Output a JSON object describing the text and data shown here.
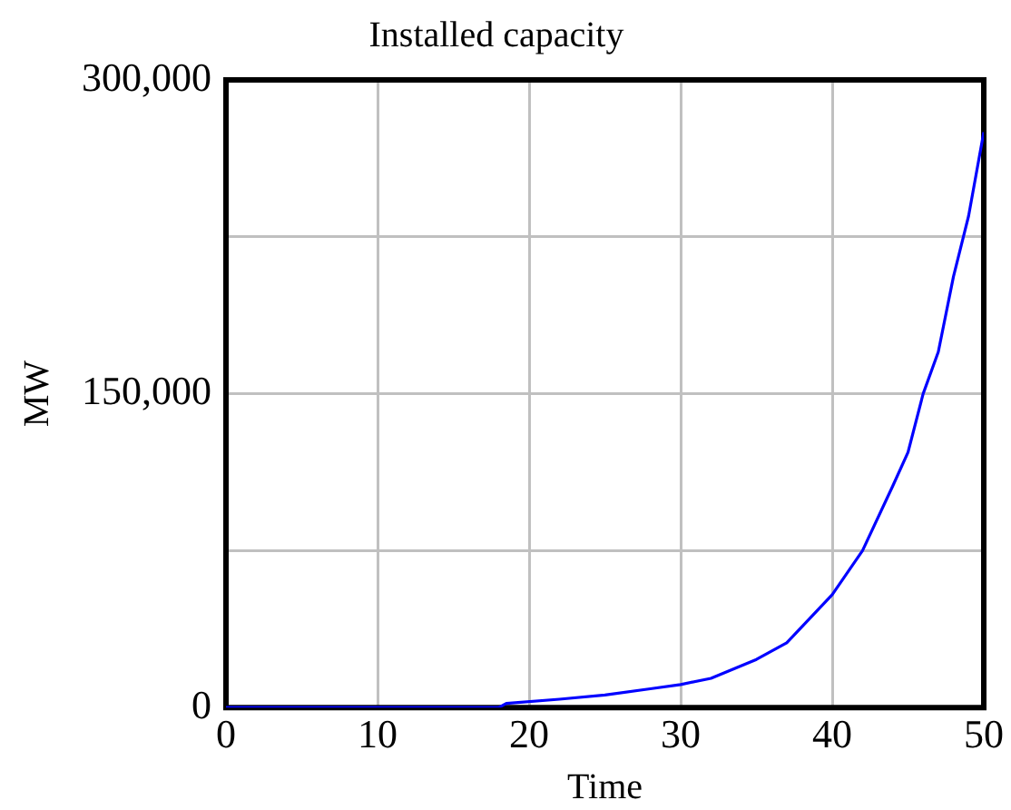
{
  "chart_data": {
    "type": "line",
    "title": "Installed capacity",
    "xlabel": "Time",
    "ylabel": "MW",
    "x": [
      0,
      5,
      10,
      15,
      18,
      18.5,
      22,
      25,
      28,
      30,
      32,
      35,
      37,
      40,
      42,
      44,
      45,
      46,
      47,
      48,
      49,
      50
    ],
    "series": [
      {
        "color": "#0000ff",
        "values": [
          0,
          0,
          0,
          0,
          0,
          2000,
          4000,
          6000,
          9000,
          11000,
          14000,
          23000,
          31000,
          54000,
          75000,
          106000,
          122000,
          150000,
          170000,
          206000,
          235000,
          275000
        ]
      }
    ],
    "xlim": [
      0,
      50
    ],
    "xticks": [
      0,
      10,
      20,
      30,
      40,
      50
    ],
    "ylim": [
      0,
      300000
    ],
    "yticks": [
      {
        "value": 0,
        "label": "0"
      },
      {
        "value": 75000,
        "label": null
      },
      {
        "value": 150000,
        "label": "150,000"
      },
      {
        "value": 225000,
        "label": null
      },
      {
        "value": 300000,
        "label": "300,000"
      }
    ],
    "grid": true,
    "legend": false,
    "marker": "none",
    "line_style": "solid"
  }
}
